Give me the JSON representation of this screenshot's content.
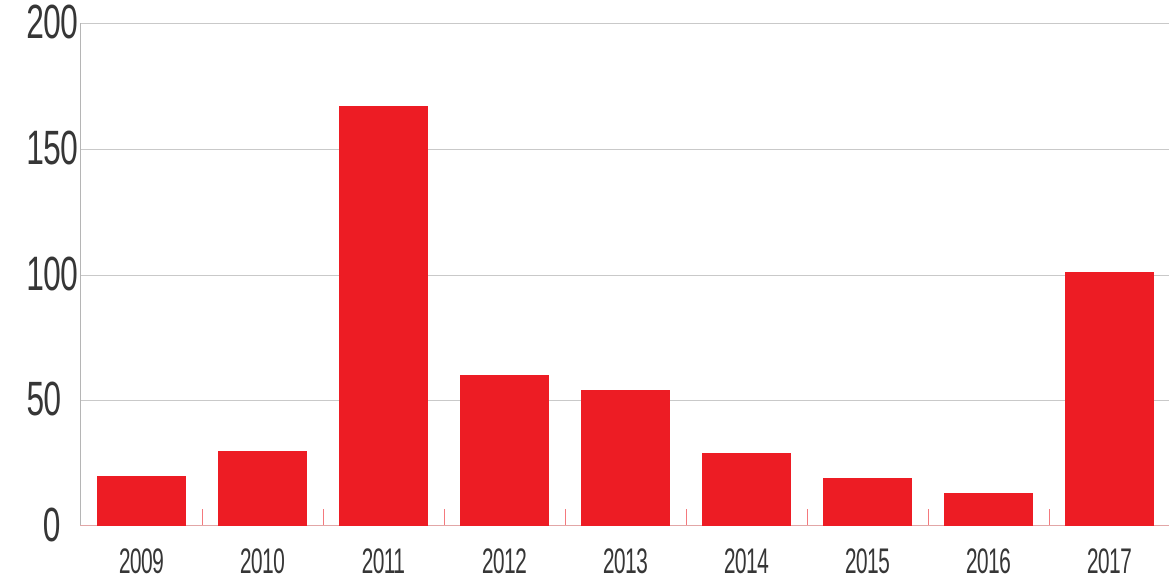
{
  "chart_data": {
    "type": "bar",
    "title": "",
    "xlabel": "",
    "ylabel": "",
    "categories": [
      "2009",
      "2010",
      "2011",
      "2012",
      "2013",
      "2014",
      "2015",
      "2016",
      "2017"
    ],
    "values": [
      20,
      30,
      167,
      60,
      54,
      29,
      19,
      13,
      101
    ],
    "ylim": [
      0,
      200
    ],
    "yticks": [
      200,
      150,
      100,
      50,
      0
    ],
    "grid": true,
    "legend": "none",
    "colors": {
      "bar": "#ed1c24",
      "gridline": "#c9c9c9",
      "axis_line": "#b5b5b5",
      "zero_baseline": "#e2a6a6",
      "category_tick": "#f4797d",
      "label": "#363636",
      "background": "#ffffff"
    }
  }
}
